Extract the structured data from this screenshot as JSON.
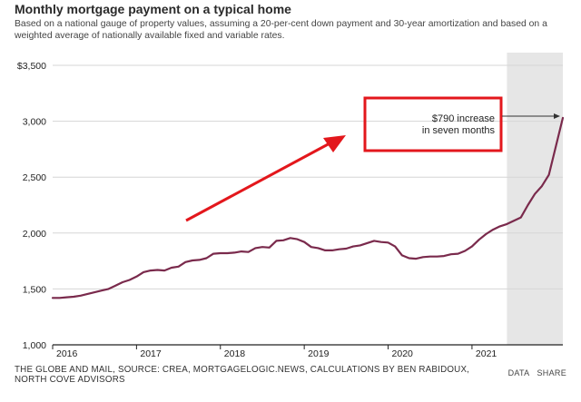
{
  "header": {
    "title": "Monthly mortgage payment on a typical home",
    "subtitle": "Based on a national gauge of property values, assuming a 20-per-cent down payment and 30-year amortization and based on a weighted average of nationally available fixed and variable rates."
  },
  "footer": {
    "source": "THE GLOBE AND MAIL, SOURCE: CREA, MORTGAGELOGIC.NEWS, CALCULATIONS BY BEN RABIDOUX, NORTH COVE ADVISORS",
    "data_label": "DATA",
    "share_label": "SHARE"
  },
  "colors": {
    "series": "#7a2a4c",
    "shade": "#e6e6e6",
    "grid": "#d6d6d6",
    "highlight_box": "#e3171c",
    "highlight_arrow": "#e3171c"
  },
  "annotation": {
    "line1": "$790 increase",
    "line2": "in seven months"
  },
  "chart_data": {
    "type": "line",
    "title": "Monthly mortgage payment on a typical home",
    "xlabel": "",
    "ylabel": "",
    "ylim": [
      1000,
      3500
    ],
    "xlim": [
      "2016-01",
      "2021-12"
    ],
    "grid": true,
    "y_ticks": [
      1000,
      1500,
      2000,
      2500,
      3000,
      3500
    ],
    "y_tick_labels": [
      "1,000",
      "1,500",
      "2,000",
      "2,500",
      "3,000",
      "$3,500"
    ],
    "x_tick_labels": [
      "2016",
      "2017",
      "2018",
      "2019",
      "2020",
      "2021"
    ],
    "shaded_region": [
      "2021-06",
      "2021-12"
    ],
    "series": [
      {
        "x": [
          "2016-01",
          "2016-02",
          "2016-03",
          "2016-04",
          "2016-05",
          "2016-06",
          "2016-07",
          "2016-08",
          "2016-09",
          "2016-10",
          "2016-11",
          "2016-12",
          "2017-01",
          "2017-02",
          "2017-03",
          "2017-04",
          "2017-05",
          "2017-06",
          "2017-07",
          "2017-08",
          "2017-09",
          "2017-10",
          "2017-11",
          "2017-12",
          "2018-01",
          "2018-02",
          "2018-03",
          "2018-04",
          "2018-05",
          "2018-06",
          "2018-07",
          "2018-08",
          "2018-09",
          "2018-10",
          "2018-11",
          "2018-12",
          "2019-01",
          "2019-02",
          "2019-03",
          "2019-04",
          "2019-05",
          "2019-06",
          "2019-07",
          "2019-08",
          "2019-09",
          "2019-10",
          "2019-11",
          "2019-12",
          "2020-01",
          "2020-02",
          "2020-03",
          "2020-04",
          "2020-05",
          "2020-06",
          "2020-07",
          "2020-08",
          "2020-09",
          "2020-10",
          "2020-11",
          "2020-12",
          "2021-01",
          "2021-02",
          "2021-03",
          "2021-04",
          "2021-05",
          "2021-06",
          "2021-07",
          "2021-08",
          "2021-09",
          "2021-10",
          "2021-11",
          "2021-12"
        ],
        "values": [
          1420,
          1420,
          1425,
          1430,
          1440,
          1455,
          1470,
          1485,
          1500,
          1530,
          1560,
          1580,
          1610,
          1650,
          1665,
          1670,
          1665,
          1690,
          1700,
          1740,
          1755,
          1760,
          1775,
          1815,
          1820,
          1820,
          1825,
          1835,
          1830,
          1865,
          1875,
          1870,
          1930,
          1935,
          1955,
          1945,
          1920,
          1875,
          1865,
          1845,
          1845,
          1855,
          1860,
          1880,
          1890,
          1910,
          1930,
          1920,
          1915,
          1880,
          1800,
          1775,
          1770,
          1785,
          1790,
          1790,
          1795,
          1810,
          1815,
          1840,
          1880,
          1940,
          1990,
          2030,
          2060,
          2080,
          2110,
          2140,
          2250,
          2350,
          2420,
          2520
        ]
      }
    ],
    "end_point": {
      "x": "2022-02",
      "value": 3030
    }
  }
}
